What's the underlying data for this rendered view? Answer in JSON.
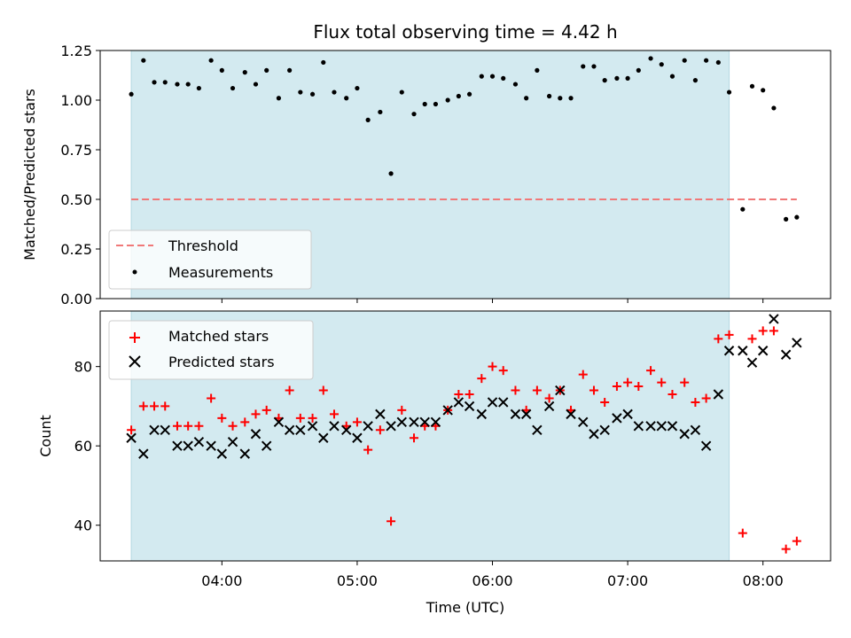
{
  "chart_data": {
    "title": "Flux total observing time = 4.42 h",
    "xlabel": "Time (UTC)",
    "x_ticks": [
      "04:00",
      "05:00",
      "06:00",
      "07:00",
      "08:00"
    ],
    "x_tick_hours": [
      4,
      5,
      6,
      7,
      8
    ],
    "xlim_hours": [
      3.1,
      8.5
    ],
    "observing_window_hours": [
      3.33,
      7.75
    ],
    "observing_window_color": "#d3eaf0",
    "panels": [
      {
        "type": "scatter",
        "ylabel": "Matched/Predicted stars",
        "ylim": [
          0,
          1.25
        ],
        "y_ticks": [
          "0.00",
          "0.25",
          "0.50",
          "0.75",
          "1.00",
          "1.25"
        ],
        "y_tick_values": [
          0,
          0.25,
          0.5,
          0.75,
          1.0,
          1.25
        ],
        "threshold": {
          "name": "Threshold",
          "value": 0.5,
          "x_range_hours": [
            3.33,
            8.25
          ],
          "color": "#f07878"
        },
        "legend": {
          "placement": "lower-left",
          "entries": [
            "Threshold",
            "Measurements"
          ]
        },
        "series": [
          {
            "name": "Measurements",
            "color": "#000000",
            "x_hours": [
              3.33,
              3.42,
              3.5,
              3.58,
              3.67,
              3.75,
              3.83,
              3.92,
              4.0,
              4.08,
              4.17,
              4.25,
              4.33,
              4.42,
              4.5,
              4.58,
              4.67,
              4.75,
              4.83,
              4.92,
              5.0,
              5.08,
              5.17,
              5.25,
              5.33,
              5.42,
              5.5,
              5.58,
              5.67,
              5.75,
              5.83,
              5.92,
              6.0,
              6.08,
              6.17,
              6.25,
              6.33,
              6.42,
              6.5,
              6.58,
              6.67,
              6.75,
              6.83,
              6.92,
              7.0,
              7.08,
              7.17,
              7.25,
              7.33,
              7.42,
              7.5,
              7.58,
              7.67,
              7.75,
              7.85,
              7.92,
              8.0,
              8.08,
              8.17,
              8.25
            ],
            "values": [
              1.03,
              1.2,
              1.09,
              1.09,
              1.08,
              1.08,
              1.06,
              1.2,
              1.15,
              1.06,
              1.14,
              1.08,
              1.15,
              1.01,
              1.15,
              1.04,
              1.03,
              1.19,
              1.04,
              1.01,
              1.06,
              0.9,
              0.94,
              0.63,
              1.04,
              0.93,
              0.98,
              0.98,
              1.0,
              1.02,
              1.03,
              1.12,
              1.12,
              1.11,
              1.08,
              1.01,
              1.15,
              1.02,
              1.01,
              1.01,
              1.17,
              1.17,
              1.1,
              1.11,
              1.11,
              1.15,
              1.21,
              1.18,
              1.12,
              1.2,
              1.1,
              1.2,
              1.19,
              1.04,
              0.45,
              1.07,
              1.05,
              0.96,
              0.4,
              0.41
            ]
          }
        ]
      },
      {
        "type": "scatter",
        "ylabel": "Count",
        "ylim": [
          31,
          94
        ],
        "y_ticks": [
          "40",
          "60",
          "80"
        ],
        "y_tick_values": [
          40,
          60,
          80
        ],
        "legend": {
          "placement": "upper-left",
          "entries": [
            "Matched stars",
            "Predicted stars"
          ]
        },
        "series": [
          {
            "name": "Matched stars",
            "marker": "+",
            "color": "#ff0000",
            "x_hours": [
              3.33,
              3.42,
              3.5,
              3.58,
              3.67,
              3.75,
              3.83,
              3.92,
              4.0,
              4.08,
              4.17,
              4.25,
              4.33,
              4.42,
              4.5,
              4.58,
              4.67,
              4.75,
              4.83,
              4.92,
              5.0,
              5.08,
              5.17,
              5.25,
              5.33,
              5.42,
              5.5,
              5.58,
              5.67,
              5.75,
              5.83,
              5.92,
              6.0,
              6.08,
              6.17,
              6.25,
              6.33,
              6.42,
              6.5,
              6.58,
              6.67,
              6.75,
              6.83,
              6.92,
              7.0,
              7.08,
              7.17,
              7.25,
              7.33,
              7.42,
              7.5,
              7.58,
              7.67,
              7.75,
              7.85,
              7.92,
              8.0,
              8.08,
              8.17,
              8.25
            ],
            "values": [
              64,
              70,
              70,
              70,
              65,
              65,
              65,
              72,
              67,
              65,
              66,
              68,
              69,
              67,
              74,
              67,
              67,
              74,
              68,
              65,
              66,
              59,
              64,
              41,
              69,
              62,
              65,
              65,
              69,
              73,
              73,
              77,
              80,
              79,
              74,
              69,
              74,
              72,
              74,
              69,
              78,
              74,
              71,
              75,
              76,
              75,
              79,
              76,
              73,
              76,
              71,
              72,
              87,
              88,
              38,
              87,
              89,
              89,
              34,
              36
            ]
          },
          {
            "name": "Predicted stars",
            "marker": "x",
            "color": "#000000",
            "x_hours": [
              3.33,
              3.42,
              3.5,
              3.58,
              3.67,
              3.75,
              3.83,
              3.92,
              4.0,
              4.08,
              4.17,
              4.25,
              4.33,
              4.42,
              4.5,
              4.58,
              4.67,
              4.75,
              4.83,
              4.92,
              5.0,
              5.08,
              5.17,
              5.25,
              5.33,
              5.42,
              5.5,
              5.58,
              5.67,
              5.75,
              5.83,
              5.92,
              6.0,
              6.08,
              6.17,
              6.25,
              6.33,
              6.42,
              6.5,
              6.58,
              6.67,
              6.75,
              6.83,
              6.92,
              7.0,
              7.08,
              7.17,
              7.25,
              7.33,
              7.42,
              7.5,
              7.58,
              7.67,
              7.75,
              7.85,
              7.92,
              8.0,
              8.08,
              8.17,
              8.25
            ],
            "values": [
              62,
              58,
              64,
              64,
              60,
              60,
              61,
              60,
              58,
              61,
              58,
              63,
              60,
              66,
              64,
              64,
              65,
              62,
              65,
              64,
              62,
              65,
              68,
              65,
              66,
              66,
              66,
              66,
              69,
              71,
              70,
              68,
              71,
              71,
              68,
              68,
              64,
              70,
              74,
              68,
              66,
              63,
              64,
              67,
              68,
              65,
              65,
              65,
              65,
              63,
              64,
              60,
              73,
              84,
              84,
              81,
              84,
              92,
              83,
              86
            ]
          }
        ]
      }
    ]
  }
}
